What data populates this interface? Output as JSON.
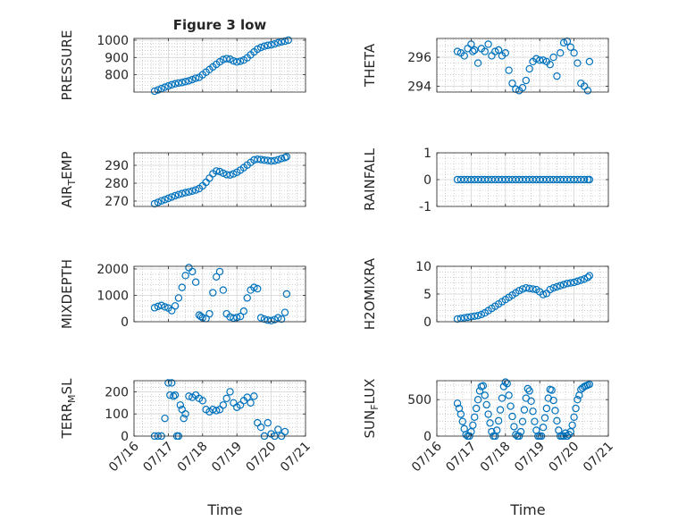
{
  "figure": {
    "title": "Figure 3 low",
    "colors": {
      "marker": "#0072BD",
      "axis": "#262626",
      "grid": "#b0b0b0",
      "background": "#ffffff"
    }
  },
  "chart_data": [
    {
      "id": "pressure",
      "type": "scatter",
      "title": "Figure 3 low",
      "ylabel": "PRESSURE",
      "ylabel_sub": "",
      "ylabel_tail": "",
      "ylim": [
        700,
        1010
      ],
      "yticks": [
        800,
        900,
        1000
      ],
      "x": [
        0.6,
        0.7,
        0.8,
        0.9,
        1.0,
        1.1,
        1.2,
        1.3,
        1.4,
        1.5,
        1.6,
        1.7,
        1.8,
        1.9,
        2.0,
        2.1,
        2.2,
        2.3,
        2.4,
        2.5,
        2.6,
        2.7,
        2.8,
        2.9,
        3.0,
        3.1,
        3.2,
        3.3,
        3.4,
        3.5,
        3.6,
        3.7,
        3.8,
        3.9,
        4.0,
        4.1,
        4.2,
        4.3,
        4.4,
        4.5
      ],
      "y": [
        705,
        712,
        720,
        728,
        735,
        742,
        748,
        752,
        755,
        760,
        765,
        772,
        780,
        785,
        800,
        815,
        830,
        845,
        860,
        875,
        888,
        893,
        890,
        880,
        874,
        878,
        885,
        898,
        915,
        932,
        948,
        958,
        965,
        970,
        973,
        978,
        985,
        990,
        994,
        1000
      ],
      "x_time": true
    },
    {
      "id": "theta",
      "type": "scatter",
      "ylabel": "THETA",
      "ylabel_sub": "",
      "ylabel_tail": "",
      "ylim": [
        293.6,
        297.3
      ],
      "yticks": [
        294,
        296
      ],
      "x": [
        0.6,
        0.7,
        0.8,
        0.9,
        1.0,
        1.05,
        1.1,
        1.2,
        1.3,
        1.4,
        1.5,
        1.6,
        1.7,
        1.8,
        1.9,
        2.0,
        2.1,
        2.2,
        2.3,
        2.4,
        2.5,
        2.6,
        2.7,
        2.8,
        2.9,
        3.0,
        3.1,
        3.2,
        3.3,
        3.4,
        3.5,
        3.6,
        3.7,
        3.8,
        3.9,
        4.0,
        4.1,
        4.2,
        4.3,
        4.4,
        4.45
      ],
      "y": [
        296.4,
        296.3,
        296.1,
        296.6,
        296.9,
        296.4,
        296.5,
        295.6,
        296.6,
        296.4,
        296.9,
        296.1,
        296.4,
        296.5,
        296.1,
        296.3,
        295.1,
        294.2,
        293.8,
        293.7,
        293.9,
        294.4,
        295.2,
        295.7,
        295.9,
        295.8,
        295.8,
        295.7,
        295.5,
        296.0,
        294.7,
        296.3,
        297.0,
        297.1,
        296.7,
        296.3,
        295.6,
        294.2,
        294.0,
        293.7,
        295.7
      ],
      "x_time": true
    },
    {
      "id": "air_temp",
      "type": "scatter",
      "ylabel": "AIR",
      "ylabel_sub": "T",
      "ylabel_tail": "EMP",
      "ylim": [
        267,
        297
      ],
      "yticks": [
        270,
        280,
        290
      ],
      "x": [
        0.6,
        0.7,
        0.8,
        0.9,
        1.0,
        1.1,
        1.2,
        1.3,
        1.4,
        1.5,
        1.6,
        1.7,
        1.8,
        1.9,
        2.0,
        2.1,
        2.2,
        2.3,
        2.4,
        2.5,
        2.6,
        2.7,
        2.8,
        2.9,
        3.0,
        3.1,
        3.2,
        3.3,
        3.4,
        3.5,
        3.6,
        3.7,
        3.8,
        3.9,
        4.0,
        4.1,
        4.2,
        4.3,
        4.4,
        4.45
      ],
      "y": [
        268.5,
        269.3,
        270.1,
        270.8,
        271.5,
        272.3,
        273.0,
        273.6,
        274.2,
        274.7,
        275.1,
        275.6,
        276.2,
        277.0,
        278.5,
        280.5,
        282.8,
        285.3,
        286.8,
        286.5,
        285.6,
        284.8,
        284.6,
        285.2,
        286.1,
        287.3,
        288.7,
        290.1,
        291.6,
        293.0,
        293.4,
        293.2,
        292.9,
        292.7,
        292.4,
        292.6,
        293.1,
        293.8,
        294.3,
        294.8
      ],
      "x_time": true
    },
    {
      "id": "rainfall",
      "type": "scatter",
      "ylabel": "RAINFALL",
      "ylabel_sub": "",
      "ylabel_tail": "",
      "ylim": [
        -1,
        1
      ],
      "yticks": [
        -1,
        0,
        1
      ],
      "x": [
        0.6,
        0.7,
        0.8,
        0.9,
        1.0,
        1.1,
        1.2,
        1.3,
        1.4,
        1.5,
        1.6,
        1.7,
        1.8,
        1.9,
        2.0,
        2.1,
        2.2,
        2.3,
        2.4,
        2.5,
        2.6,
        2.7,
        2.8,
        2.9,
        3.0,
        3.1,
        3.2,
        3.3,
        3.4,
        3.5,
        3.6,
        3.7,
        3.8,
        3.9,
        4.0,
        4.1,
        4.2,
        4.3,
        4.4,
        4.45
      ],
      "y": [
        0,
        0,
        0,
        0,
        0,
        0,
        0,
        0,
        0,
        0,
        0,
        0,
        0,
        0,
        0,
        0,
        0,
        0,
        0,
        0,
        0,
        0,
        0,
        0,
        0,
        0,
        0,
        0,
        0,
        0,
        0,
        0,
        0,
        0,
        0,
        0,
        0,
        0,
        0,
        0
      ],
      "x_time": true
    },
    {
      "id": "mixdepth",
      "type": "scatter",
      "ylabel": "MIXDEPTH",
      "ylabel_sub": "",
      "ylabel_tail": "",
      "ylim": [
        0,
        2100
      ],
      "yticks": [
        0,
        1000,
        2000
      ],
      "x": [
        0.6,
        0.7,
        0.8,
        0.9,
        1.0,
        1.1,
        1.2,
        1.3,
        1.4,
        1.5,
        1.6,
        1.7,
        1.8,
        1.9,
        1.95,
        2.0,
        2.1,
        2.2,
        2.3,
        2.4,
        2.5,
        2.6,
        2.7,
        2.8,
        2.9,
        3.0,
        3.1,
        3.2,
        3.3,
        3.4,
        3.5,
        3.6,
        3.7,
        3.8,
        3.9,
        4.0,
        4.1,
        4.2,
        4.3,
        4.4,
        4.45
      ],
      "y": [
        530,
        580,
        620,
        560,
        520,
        420,
        600,
        900,
        1300,
        1750,
        2050,
        1900,
        1500,
        250,
        200,
        150,
        120,
        300,
        1100,
        1700,
        1900,
        1200,
        300,
        180,
        140,
        160,
        200,
        400,
        900,
        1200,
        1300,
        1250,
        150,
        100,
        60,
        40,
        80,
        150,
        100,
        350,
        1050
      ],
      "x_time": true
    },
    {
      "id": "h2omixra",
      "type": "scatter",
      "ylabel": "H2OMIXRA",
      "ylabel_sub": "",
      "ylabel_tail": "",
      "ylim": [
        0,
        10
      ],
      "yticks": [
        0,
        5,
        10
      ],
      "x": [
        0.6,
        0.7,
        0.8,
        0.9,
        1.0,
        1.1,
        1.2,
        1.3,
        1.4,
        1.5,
        1.6,
        1.7,
        1.8,
        1.9,
        2.0,
        2.1,
        2.2,
        2.3,
        2.4,
        2.5,
        2.6,
        2.7,
        2.8,
        2.9,
        3.0,
        3.1,
        3.2,
        3.3,
        3.4,
        3.5,
        3.6,
        3.7,
        3.8,
        3.9,
        4.0,
        4.1,
        4.2,
        4.3,
        4.4,
        4.45
      ],
      "y": [
        0.5,
        0.6,
        0.7,
        0.8,
        0.9,
        1.0,
        1.1,
        1.3,
        1.6,
        2.0,
        2.4,
        2.8,
        3.2,
        3.6,
        4.0,
        4.4,
        4.8,
        5.2,
        5.6,
        5.9,
        6.1,
        6.0,
        5.9,
        5.8,
        5.4,
        4.9,
        5.1,
        5.8,
        6.1,
        6.3,
        6.5,
        6.7,
        6.9,
        7.0,
        7.1,
        7.3,
        7.5,
        7.7,
        8.0,
        8.3
      ],
      "x_time": true
    },
    {
      "id": "terr_msl",
      "type": "scatter",
      "ylabel": "TERR",
      "ylabel_sub": "M",
      "ylabel_tail": "SL",
      "ylim": [
        0,
        250
      ],
      "yticks": [
        0,
        100,
        200
      ],
      "x": [
        0.6,
        0.7,
        0.8,
        0.9,
        1.0,
        1.05,
        1.1,
        1.15,
        1.2,
        1.25,
        1.3,
        1.35,
        1.4,
        1.45,
        1.5,
        1.6,
        1.7,
        1.8,
        1.9,
        2.0,
        2.1,
        2.2,
        2.3,
        2.4,
        2.5,
        2.6,
        2.7,
        2.8,
        2.9,
        3.0,
        3.1,
        3.2,
        3.3,
        3.4,
        3.5,
        3.6,
        3.7,
        3.8,
        3.9,
        4.0,
        4.1,
        4.2,
        4.3,
        4.4
      ],
      "y": [
        0,
        0,
        0,
        80,
        240,
        185,
        240,
        180,
        185,
        0,
        0,
        140,
        120,
        80,
        100,
        180,
        175,
        185,
        170,
        160,
        120,
        110,
        120,
        115,
        120,
        140,
        170,
        200,
        150,
        130,
        140,
        160,
        175,
        150,
        180,
        60,
        40,
        0,
        60,
        10,
        0,
        30,
        0,
        20
      ],
      "x_time": true
    },
    {
      "id": "sun_flux",
      "type": "scatter",
      "ylabel": "SUN",
      "ylabel_sub": "F",
      "ylabel_tail": "LUX",
      "ylim": [
        0,
        760
      ],
      "yticks": [
        0,
        500
      ],
      "x": [
        0.6,
        0.65,
        0.7,
        0.75,
        0.8,
        0.85,
        0.9,
        0.95,
        1.0,
        1.05,
        1.1,
        1.15,
        1.2,
        1.25,
        1.3,
        1.35,
        1.4,
        1.45,
        1.5,
        1.55,
        1.6,
        1.65,
        1.7,
        1.75,
        1.8,
        1.85,
        1.9,
        1.95,
        2.0,
        2.05,
        2.1,
        2.15,
        2.2,
        2.25,
        2.3,
        2.35,
        2.4,
        2.45,
        2.5,
        2.55,
        2.6,
        2.65,
        2.7,
        2.75,
        2.8,
        2.85,
        2.9,
        2.95,
        3.0,
        3.05,
        3.1,
        3.15,
        3.2,
        3.25,
        3.3,
        3.35,
        3.4,
        3.45,
        3.5,
        3.55,
        3.6,
        3.65,
        3.7,
        3.75,
        3.8,
        3.85,
        3.9,
        3.95,
        4.0,
        4.05,
        4.1,
        4.15,
        4.2,
        4.25,
        4.3,
        4.35,
        4.4,
        4.45
      ],
      "y": [
        450,
        380,
        300,
        200,
        100,
        20,
        0,
        0,
        60,
        150,
        260,
        380,
        500,
        620,
        680,
        690,
        560,
        430,
        300,
        180,
        60,
        0,
        0,
        80,
        210,
        360,
        520,
        680,
        740,
        720,
        560,
        410,
        270,
        130,
        20,
        0,
        0,
        60,
        200,
        360,
        520,
        650,
        620,
        480,
        340,
        200,
        80,
        0,
        0,
        0,
        120,
        250,
        380,
        520,
        640,
        630,
        490,
        350,
        210,
        80,
        0,
        0,
        0,
        40,
        0,
        20,
        60,
        150,
        260,
        380,
        500,
        560,
        640,
        660,
        680,
        690,
        700,
        710
      ],
      "x_time": true
    }
  ],
  "x_axis": {
    "xlim": [
      0,
      5
    ],
    "tick_values": [
      0,
      1,
      2,
      3,
      4,
      5
    ],
    "tick_labels": [
      "07/16",
      "07/17",
      "07/18",
      "07/19",
      "07/20",
      "07/21"
    ],
    "xlabel": "Time"
  }
}
